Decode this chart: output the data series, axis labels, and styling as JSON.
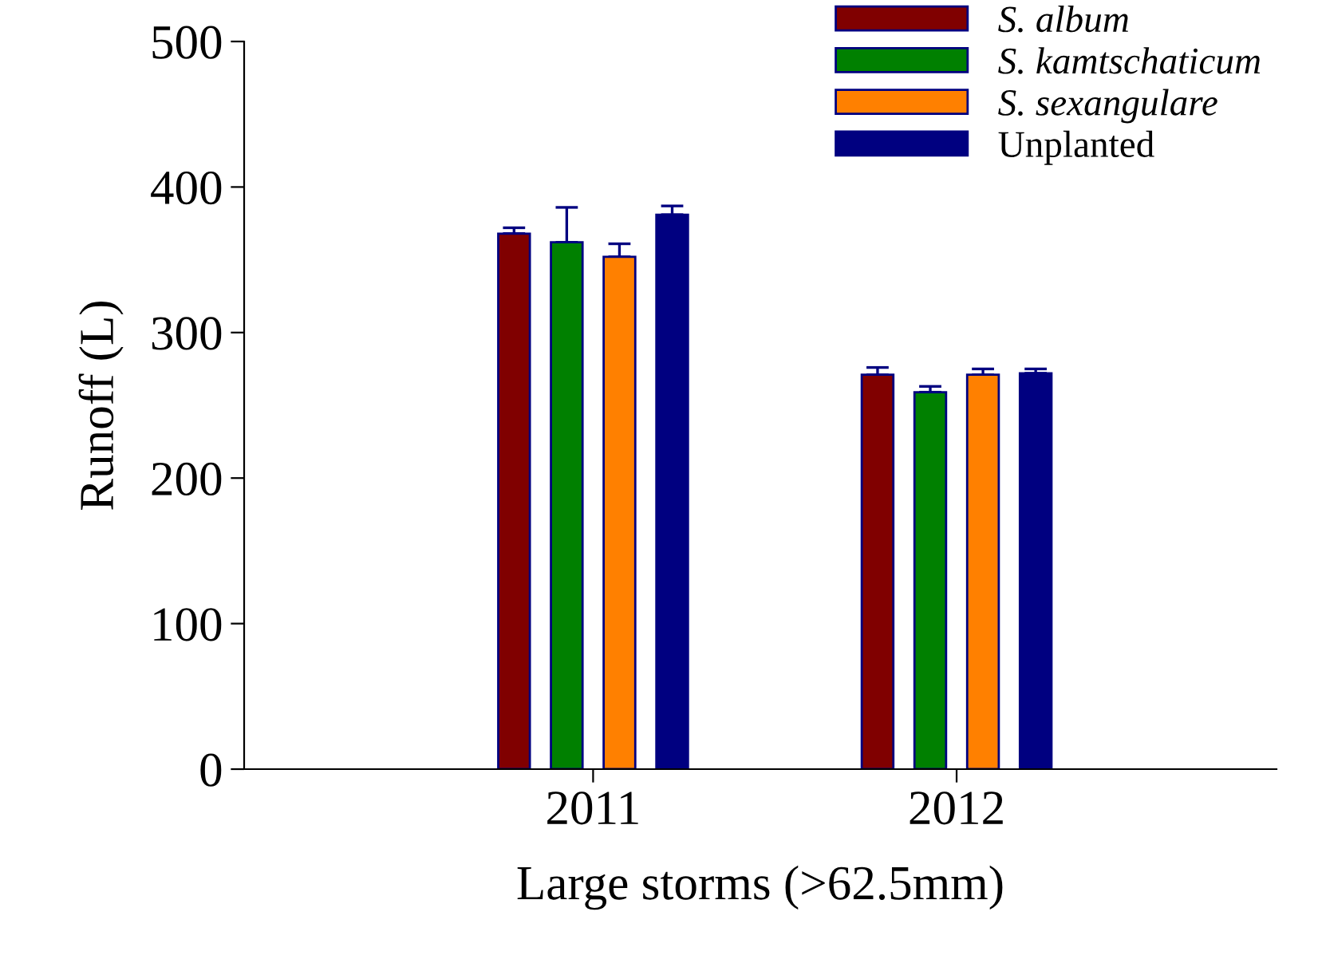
{
  "chart_data": {
    "type": "bar",
    "xlabel": "Large storms (>62.5mm)",
    "ylabel": "Runoff (L)",
    "categories": [
      "2011",
      "2012"
    ],
    "series": [
      {
        "name": "S. album",
        "color": "#800000",
        "values": [
          368,
          271
        ],
        "errors": [
          4,
          5
        ]
      },
      {
        "name": "S. kamtschaticum",
        "color": "#008000",
        "values": [
          362,
          259
        ],
        "errors": [
          24,
          4
        ]
      },
      {
        "name": "S. sexangulare",
        "color": "#ff8000",
        "values": [
          352,
          271
        ],
        "errors": [
          9,
          4
        ]
      },
      {
        "name": "Unplanted",
        "color": "#000080",
        "values": [
          381,
          272
        ],
        "errors": [
          6,
          3
        ]
      }
    ],
    "ylim": [
      0,
      500
    ],
    "yticks": [
      0,
      100,
      200,
      300,
      400,
      500
    ],
    "grid": false,
    "legend": "top right"
  }
}
